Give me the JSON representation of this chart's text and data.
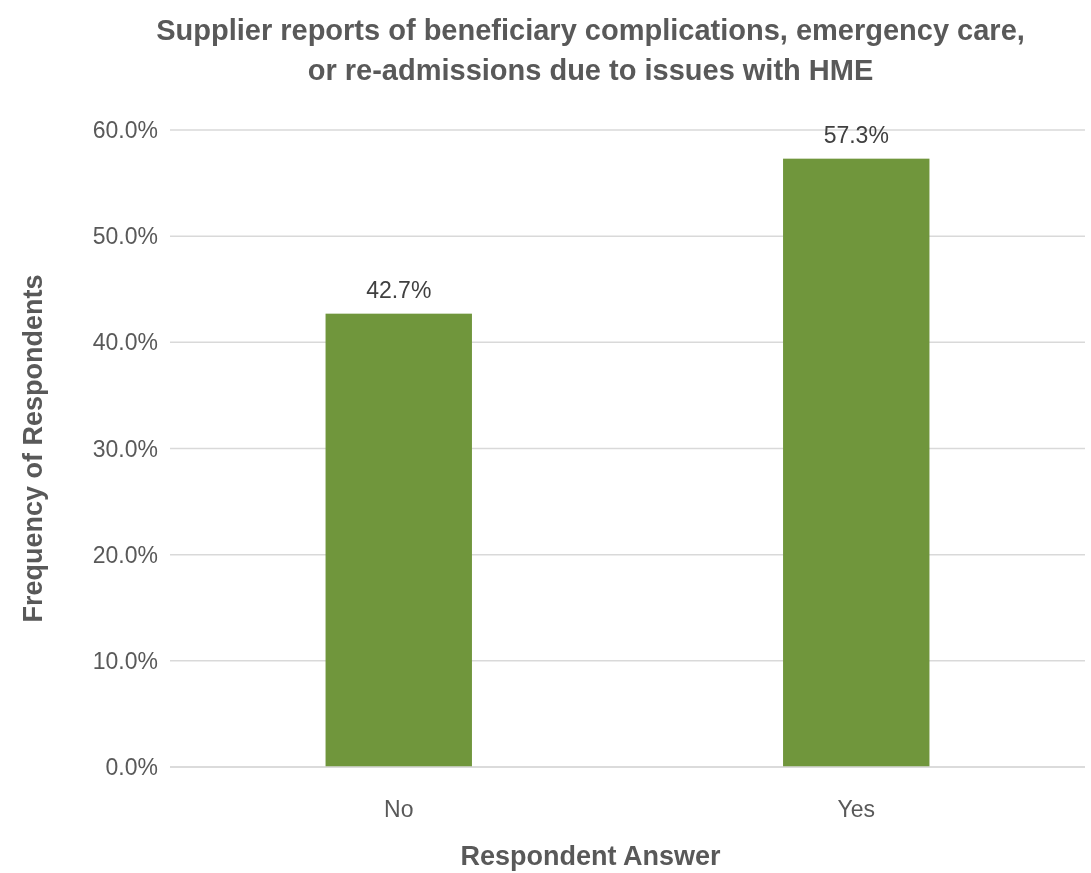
{
  "chart_data": {
    "type": "bar",
    "title": "Supplier reports of beneficiary complications, emergency care, or re-admissions due to issues with HME",
    "xlabel": "Respondent Answer",
    "ylabel": "Frequency of Respondents",
    "categories": [
      "No",
      "Yes"
    ],
    "values": [
      42.7,
      57.3
    ],
    "color": "#70963c",
    "value_labels": [
      "42.7%",
      "57.3%"
    ],
    "ylim": [
      0,
      60
    ],
    "yticks": [
      {
        "value": 0,
        "label": "0.0%"
      },
      {
        "value": 10,
        "label": "10.0%"
      },
      {
        "value": 20,
        "label": "20.0%"
      },
      {
        "value": 30,
        "label": "30.0%"
      },
      {
        "value": 40,
        "label": "40.0%"
      },
      {
        "value": 50,
        "label": "50.0%"
      },
      {
        "value": 60,
        "label": "60.0%"
      }
    ],
    "grid": "y"
  }
}
